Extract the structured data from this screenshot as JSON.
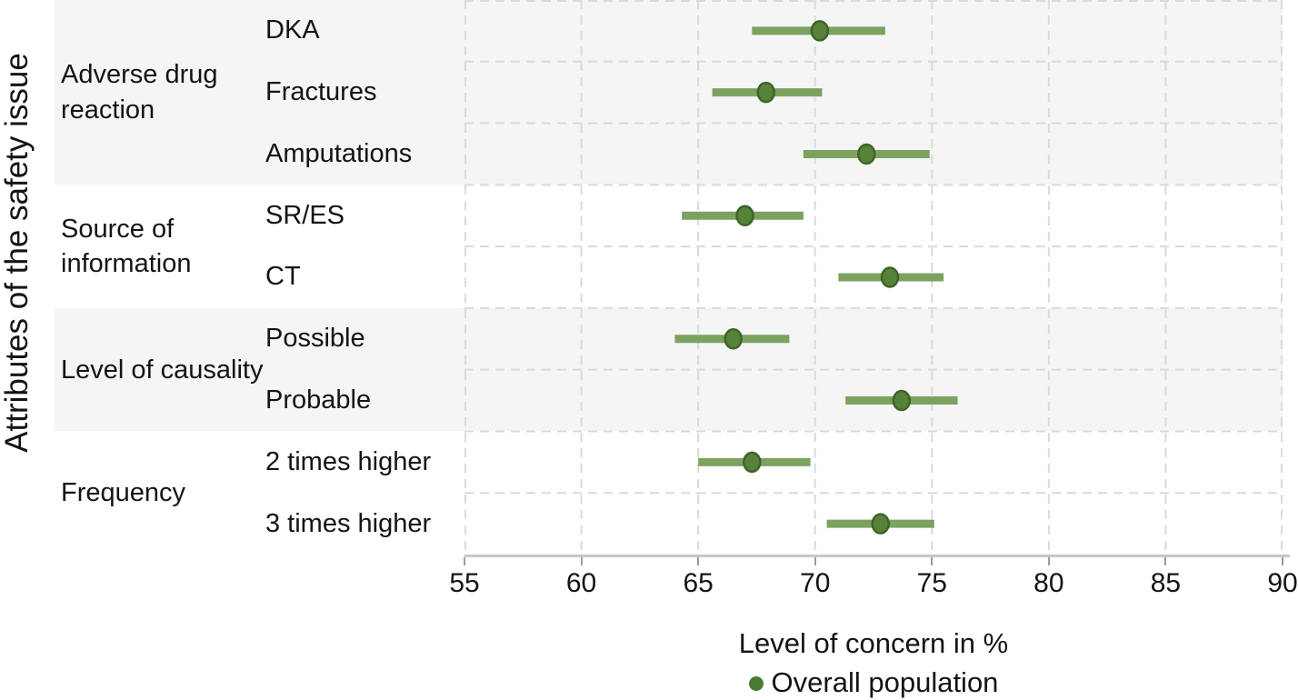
{
  "figure": {
    "y_axis_title": "Attributes of the safety issue",
    "x_axis_title": "Level of concern in %",
    "legend": {
      "label": "Overall population"
    }
  },
  "chart_data": {
    "type": "scatter",
    "variant": "horizontal dot plot with error bars (forest plot)",
    "title": "",
    "xlabel": "Level of concern in %",
    "ylabel": "Attributes of the safety issue",
    "xlim": [
      55,
      90
    ],
    "x_ticks": [
      55,
      60,
      65,
      70,
      75,
      80,
      85,
      90
    ],
    "grid": "dashed vertical gridlines at each x tick; dashed horizontal gridlines between rows; alternating shaded group bands",
    "legend_entries": [
      "Overall population"
    ],
    "legend_position": "bottom center",
    "series_name": "Overall population",
    "value_unit": "%",
    "groups": [
      {
        "label": "Adverse drug reaction",
        "shaded": true,
        "items": [
          {
            "label": "DKA",
            "value": 70.2,
            "ci_low": 67.3,
            "ci_high": 73.0
          },
          {
            "label": "Fractures",
            "value": 67.9,
            "ci_low": 65.6,
            "ci_high": 70.3
          },
          {
            "label": "Amputations",
            "value": 72.2,
            "ci_low": 69.5,
            "ci_high": 74.9
          }
        ]
      },
      {
        "label": "Source of information",
        "shaded": false,
        "items": [
          {
            "label": "SR/ES",
            "value": 67.0,
            "ci_low": 64.3,
            "ci_high": 69.5
          },
          {
            "label": "CT",
            "value": 73.2,
            "ci_low": 71.0,
            "ci_high": 75.5
          }
        ]
      },
      {
        "label": "Level of causality",
        "shaded": true,
        "items": [
          {
            "label": "Possible",
            "value": 66.5,
            "ci_low": 64.0,
            "ci_high": 68.9
          },
          {
            "label": "Probable",
            "value": 73.7,
            "ci_low": 71.3,
            "ci_high": 76.1
          }
        ]
      },
      {
        "label": "Frequency",
        "shaded": false,
        "items": [
          {
            "label": "2 times higher",
            "value": 67.3,
            "ci_low": 65.0,
            "ci_high": 69.8
          },
          {
            "label": "3 times higher",
            "value": 72.8,
            "ci_low": 70.5,
            "ci_high": 75.1
          }
        ]
      }
    ],
    "colors": {
      "error_bar": "#7ca260",
      "marker_fill": "#578239",
      "marker_stroke": "#3e6428",
      "legend_dot": "#4d7a33",
      "band_shade": "#f5f5f5",
      "gridline": "#dadada",
      "axis_line": "#c6c6c6",
      "tick": "#9c9c9c",
      "text": "#141414"
    }
  }
}
